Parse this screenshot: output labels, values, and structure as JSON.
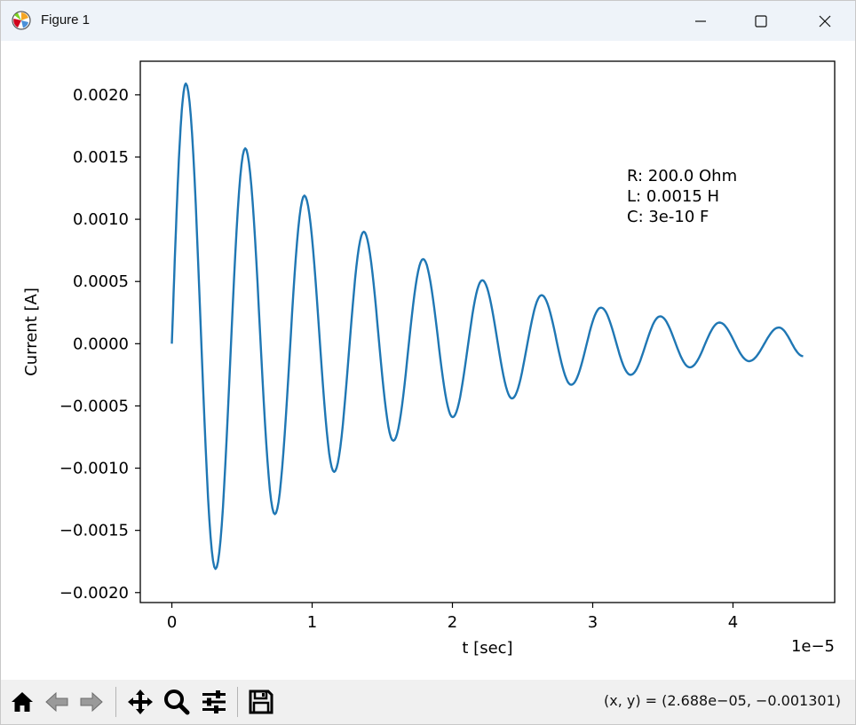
{
  "window": {
    "title": "Figure 1",
    "icons": {
      "app": "matplotlib-logo-icon",
      "minimize": "minimize-icon",
      "maximize": "maximize-icon",
      "close": "close-icon"
    }
  },
  "toolbar": {
    "buttons": [
      {
        "name": "home",
        "icon": "home-icon"
      },
      {
        "name": "back",
        "icon": "back-arrow-icon"
      },
      {
        "name": "forward",
        "icon": "forward-arrow-icon"
      },
      {
        "name": "pan",
        "icon": "move-icon"
      },
      {
        "name": "zoom",
        "icon": "zoom-icon"
      },
      {
        "name": "configure-subplots",
        "icon": "sliders-icon"
      },
      {
        "name": "save",
        "icon": "save-icon"
      }
    ],
    "coordinates": "(x, y) = (2.688e−05, −0.001301)"
  },
  "chart_data": {
    "type": "line",
    "title": "",
    "xlabel": "t [sec]",
    "ylabel": "Current [A]",
    "x_offset_label": "1e−5",
    "xlim": [
      -0.225,
      4.725
    ],
    "ylim": [
      -0.00208,
      0.00227
    ],
    "xticks": [
      0,
      1,
      2,
      3,
      4
    ],
    "xtick_labels": [
      "0",
      "1",
      "2",
      "3",
      "4"
    ],
    "yticks": [
      -0.002,
      -0.0015,
      -0.001,
      -0.0005,
      0.0,
      0.0005,
      0.001,
      0.0015,
      0.002
    ],
    "ytick_labels": [
      "−0.0020",
      "−0.0015",
      "−0.0010",
      "−0.0005",
      "0.0000",
      "0.0005",
      "0.0010",
      "0.0015",
      "0.0020"
    ],
    "grid": false,
    "annotation": [
      "R: 200.0 Ohm",
      "L: 0.0015 H",
      "C: 3e-10 F"
    ],
    "series": [
      {
        "color": "#1f77b4",
        "x": [
          0.0,
          0.1,
          0.311,
          0.523,
          0.734,
          0.945,
          1.157,
          1.368,
          1.579,
          1.791,
          2.002,
          2.213,
          2.425,
          2.636,
          2.847,
          3.059,
          3.27,
          3.481,
          3.693,
          3.904,
          4.115,
          4.327,
          4.5
        ],
        "y": [
          0.0,
          0.00209,
          -0.00181,
          0.00157,
          -0.00137,
          0.00119,
          -0.00103,
          0.0009,
          -0.00078,
          0.00068,
          -0.00059,
          0.00051,
          -0.00044,
          0.00039,
          -0.00033,
          0.00029,
          -0.00025,
          0.00022,
          -0.00019,
          0.00017,
          -0.00014,
          0.00013,
          -0.0001
        ]
      }
    ]
  }
}
